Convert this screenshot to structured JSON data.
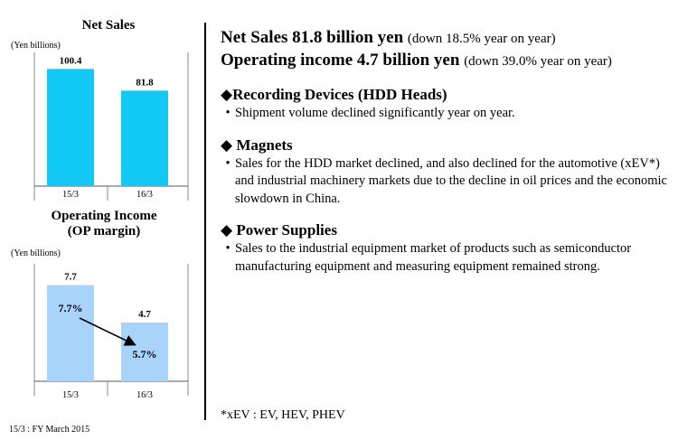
{
  "net_sales_chart": {
    "title": "Net Sales",
    "unit": "(Yen billions)"
  },
  "op_income_chart": {
    "title_line1": "Operating Income",
    "title_line2": "(OP margin)",
    "unit": "(Yen billions)"
  },
  "chart_data": [
    {
      "type": "bar",
      "title": "Net Sales",
      "ylabel": "(Yen billions)",
      "categories": [
        "15/3",
        "16/3"
      ],
      "values": [
        100.4,
        81.8
      ],
      "data_labels": [
        "100.4",
        "81.8"
      ],
      "color": "#12c8f4",
      "ylim": [
        0,
        120
      ]
    },
    {
      "type": "bar",
      "title": "Operating Income (OP margin)",
      "ylabel": "(Yen billions)",
      "categories": [
        "15/3",
        "16/3"
      ],
      "values": [
        7.7,
        4.7
      ],
      "data_labels": [
        "7.7",
        "4.7"
      ],
      "margins": [
        "7.7%",
        "5.7%"
      ],
      "color": "#a8d4fa",
      "ylim": [
        0,
        9.4
      ]
    }
  ],
  "headline": {
    "net_sales_main": "Net Sales  81.8 billion yen",
    "net_sales_change": "(down 18.5% year on year)",
    "op_income_main": "Operating income 4.7 billion yen",
    "op_income_change": "(down 39.0% year on year)"
  },
  "sections": [
    {
      "title": "◆Recording Devices (HDD Heads)",
      "bullets": [
        "Shipment volume declined significantly year on year."
      ]
    },
    {
      "title": "◆ Magnets",
      "bullets": [
        "Sales for the HDD market declined, and also declined for the automotive (xEV*) and industrial machinery markets due to the decline in oil prices and the economic slowdown in China."
      ]
    },
    {
      "title": "◆ Power Supplies",
      "bullets": [
        "Sales to the industrial equipment market of products such as semiconductor manufacturing equipment and measuring equipment remained strong."
      ]
    }
  ],
  "bullet_char": "•",
  "note": "*xEV : EV, HEV, PHEV",
  "footnote": "15/3 : FY March 2015"
}
